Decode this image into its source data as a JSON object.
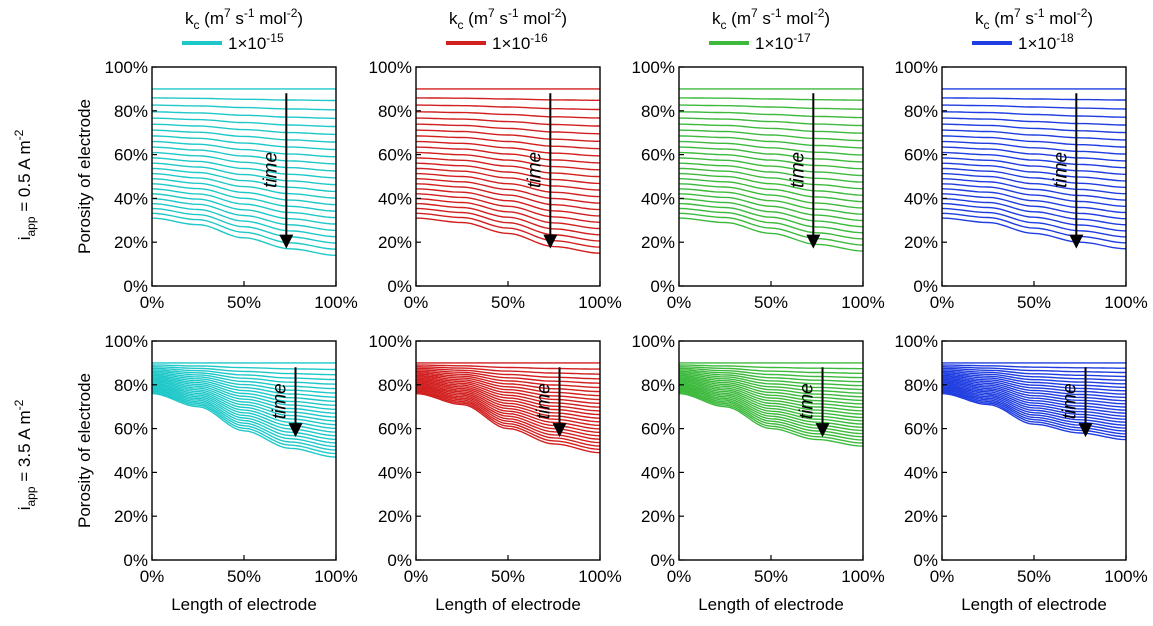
{
  "figure": {
    "row_labels": [
      {
        "main": "i",
        "sub": "app",
        "rest": " = 0.5 A m",
        "sup": "-2"
      },
      {
        "main": "i",
        "sub": "app",
        "rest": " = 3.5 A m",
        "sup": "-2"
      }
    ],
    "column_headers": [
      {
        "kc_text": "k",
        "kc_sub": "c",
        "units": " (m",
        "u1": "7",
        "u2": " s",
        "u3": "-1",
        "u4": " mol",
        "u5": "-2",
        "u6": ")",
        "legend_base": "1×10",
        "legend_exp": "-15",
        "color": "#1fc8c8"
      },
      {
        "kc_text": "k",
        "kc_sub": "c",
        "units": " (m",
        "u1": "7",
        "u2": " s",
        "u3": "-1",
        "u4": " mol",
        "u5": "-2",
        "u6": ")",
        "legend_base": "1×10",
        "legend_exp": "-16",
        "color": "#d21f1f"
      },
      {
        "kc_text": "k",
        "kc_sub": "c",
        "units": " (m",
        "u1": "7",
        "u2": " s",
        "u3": "-1",
        "u4": " mol",
        "u5": "-2",
        "u6": ")",
        "legend_base": "1×10",
        "legend_exp": "-17",
        "color": "#3dba3d"
      },
      {
        "kc_text": "k",
        "kc_sub": "c",
        "units": " (m",
        "u1": "7",
        "u2": " s",
        "u3": "-1",
        "u4": " mol",
        "u5": "-2",
        "u6": ")",
        "legend_base": "1×10",
        "legend_exp": "-18",
        "color": "#1f3de0"
      }
    ],
    "annotation": "time",
    "y_axis_label": "Porosity of electrode",
    "x_axis_label": "Length of electrode",
    "x_ticks": [
      "0%",
      "50%",
      "100%"
    ],
    "y_ticks": [
      "0%",
      "20%",
      "40%",
      "60%",
      "80%",
      "100%"
    ]
  },
  "chart_data": [
    {
      "type": "line",
      "row": 0,
      "col": 0,
      "kc": "1×10^-15",
      "color": "#1fc8c8",
      "n_curves": 24,
      "x": [
        0,
        0.25,
        0.5,
        0.75,
        1.0
      ],
      "initial_porosity": 0.9,
      "final_curve": [
        0.31,
        0.28,
        0.22,
        0.17,
        0.14
      ],
      "xlim": [
        0,
        1
      ],
      "ylim": [
        0,
        1
      ]
    },
    {
      "type": "line",
      "row": 0,
      "col": 1,
      "kc": "1×10^-16",
      "color": "#d21f1f",
      "n_curves": 24,
      "x": [
        0,
        0.25,
        0.5,
        0.75,
        1.0
      ],
      "initial_porosity": 0.9,
      "final_curve": [
        0.31,
        0.29,
        0.24,
        0.18,
        0.15
      ],
      "xlim": [
        0,
        1
      ],
      "ylim": [
        0,
        1
      ]
    },
    {
      "type": "line",
      "row": 0,
      "col": 2,
      "kc": "1×10^-17",
      "color": "#3dba3d",
      "n_curves": 24,
      "x": [
        0,
        0.25,
        0.5,
        0.75,
        1.0
      ],
      "initial_porosity": 0.9,
      "final_curve": [
        0.31,
        0.29,
        0.24,
        0.19,
        0.16
      ],
      "xlim": [
        0,
        1
      ],
      "ylim": [
        0,
        1
      ]
    },
    {
      "type": "line",
      "row": 0,
      "col": 3,
      "kc": "1×10^-18",
      "color": "#1f3de0",
      "n_curves": 24,
      "x": [
        0,
        0.25,
        0.5,
        0.75,
        1.0
      ],
      "initial_porosity": 0.9,
      "final_curve": [
        0.31,
        0.29,
        0.24,
        0.2,
        0.17
      ],
      "xlim": [
        0,
        1
      ],
      "ylim": [
        0,
        1
      ]
    },
    {
      "type": "line",
      "row": 1,
      "col": 0,
      "kc": "1×10^-15",
      "color": "#1fc8c8",
      "n_curves": 24,
      "x": [
        0,
        0.25,
        0.5,
        0.75,
        1.0
      ],
      "initial_porosity": 0.9,
      "final_curve": [
        0.76,
        0.7,
        0.59,
        0.51,
        0.47
      ],
      "xlim": [
        0,
        1
      ],
      "ylim": [
        0,
        1
      ]
    },
    {
      "type": "line",
      "row": 1,
      "col": 1,
      "kc": "1×10^-16",
      "color": "#d21f1f",
      "n_curves": 24,
      "x": [
        0,
        0.25,
        0.5,
        0.75,
        1.0
      ],
      "initial_porosity": 0.9,
      "final_curve": [
        0.76,
        0.71,
        0.6,
        0.53,
        0.49
      ],
      "xlim": [
        0,
        1
      ],
      "ylim": [
        0,
        1
      ]
    },
    {
      "type": "line",
      "row": 1,
      "col": 2,
      "kc": "1×10^-17",
      "color": "#3dba3d",
      "n_curves": 24,
      "x": [
        0,
        0.25,
        0.5,
        0.75,
        1.0
      ],
      "initial_porosity": 0.9,
      "final_curve": [
        0.76,
        0.7,
        0.6,
        0.55,
        0.52
      ],
      "xlim": [
        0,
        1
      ],
      "ylim": [
        0,
        1
      ]
    },
    {
      "type": "line",
      "row": 1,
      "col": 3,
      "kc": "1×10^-18",
      "color": "#1f3de0",
      "n_curves": 24,
      "x": [
        0,
        0.25,
        0.5,
        0.75,
        1.0
      ],
      "initial_porosity": 0.9,
      "final_curve": [
        0.76,
        0.71,
        0.62,
        0.58,
        0.55
      ],
      "xlim": [
        0,
        1
      ],
      "ylim": [
        0,
        1
      ]
    }
  ]
}
